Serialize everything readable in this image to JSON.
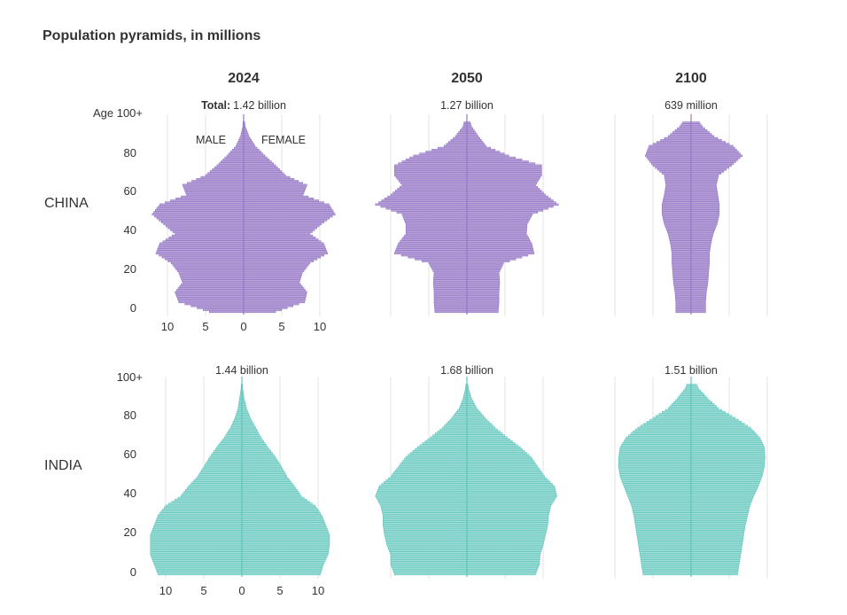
{
  "chart_data": {
    "type": "bar",
    "title": "Population pyramids, in millions",
    "age_step": 5,
    "ages": [
      0,
      5,
      10,
      15,
      20,
      25,
      30,
      35,
      40,
      45,
      50,
      55,
      60,
      65,
      70,
      75,
      80,
      85,
      90,
      95,
      100
    ],
    "yticks": [
      "0",
      "20",
      "40",
      "60",
      "80"
    ],
    "ytick_top_china": "Age 100+",
    "ytick_top_india": "100+",
    "xticks": [
      "10",
      "5",
      "0",
      "5",
      "10"
    ],
    "xlim": [
      -10,
      10
    ],
    "male_label": "MALE",
    "female_label": "FEMALE",
    "total_prefix": "Total:",
    "colors": {
      "china_fill": "#bba6dc",
      "china_stroke": "#9478c4",
      "india_fill": "#a6e0da",
      "india_stroke": "#5ec5bb",
      "grid": "#e3e3e3"
    },
    "rows": [
      {
        "country": "CHINA",
        "panels": [
          {
            "year": "2024",
            "total": "1.42 billion",
            "male": [
              4.5,
              8.5,
              9,
              8,
              8.5,
              9.5,
              11.5,
              11,
              9,
              10.5,
              12,
              11,
              7.5,
              8,
              5,
              3.5,
              2.2,
              1,
              0.4,
              0.1,
              0.05
            ],
            "female": [
              4.2,
              8,
              8.3,
              7.3,
              7.7,
              8.7,
              11,
              10.5,
              8.7,
              10.2,
              12,
              11.2,
              7.8,
              8.3,
              5.5,
              4.2,
              2.8,
              1.5,
              0.7,
              0.2,
              0.05
            ]
          },
          {
            "year": "2050",
            "total": "1.27 billion",
            "male": [
              4.2,
              4.3,
              4.3,
              4.4,
              4.3,
              5,
              9.5,
              9,
              8,
              8,
              8.5,
              12,
              10,
              8.5,
              9.5,
              9.5,
              7,
              3,
              1.5,
              0.5,
              0.2
            ],
            "female": [
              4.1,
              4.2,
              4.2,
              4.3,
              4.2,
              4.8,
              8.8,
              8.5,
              7.8,
              7.9,
              8.6,
              12,
              10.3,
              9,
              9.8,
              9.8,
              5.5,
              2.5,
              1.5,
              0.6,
              0.2
            ]
          },
          {
            "year": "2100",
            "total": "639 million",
            "male": [
              2,
              2,
              2.1,
              2.3,
              2.4,
              2.5,
              2.5,
              2.7,
              3,
              3.5,
              3.8,
              3.8,
              3.5,
              3.3,
              3.5,
              5,
              6,
              5.5,
              3,
              1.5,
              0.5
            ],
            "female": [
              1.9,
              1.9,
              2,
              2.2,
              2.3,
              2.4,
              2.4,
              2.6,
              2.9,
              3.4,
              3.7,
              3.7,
              3.5,
              3.3,
              3.6,
              5.3,
              6.7,
              5.5,
              3,
              1.5,
              0.5
            ]
          }
        ]
      },
      {
        "country": "INDIA",
        "panels": [
          {
            "year": "2024",
            "total": "1.44 billion",
            "male": [
              11,
              11.5,
              12,
              12,
              12,
              11.5,
              11,
              10,
              8,
              7,
              5.8,
              5,
              4.2,
              3.3,
              2.3,
              1.5,
              0.9,
              0.5,
              0.3,
              0.1,
              0.05
            ],
            "female": [
              10.3,
              10.7,
              11.3,
              11.5,
              11.5,
              11,
              10.5,
              9.6,
              7.8,
              6.9,
              5.9,
              5.2,
              4.4,
              3.4,
              2.5,
              1.8,
              1.1,
              0.6,
              0.3,
              0.1,
              0.05
            ]
          },
          {
            "year": "2050",
            "total": "1.68 billion",
            "male": [
              9.5,
              10,
              10,
              10.5,
              10.8,
              11,
              11,
              11.3,
              12,
              11.5,
              10,
              9,
              8,
              6.5,
              4.8,
              3.2,
              2,
              1,
              0.5,
              0.2,
              0.05
            ],
            "female": [
              9,
              9.5,
              9.6,
              10,
              10.3,
              10.6,
              10.7,
              11,
              11.8,
              11.5,
              10.2,
              9.3,
              8.4,
              7,
              5.3,
              3.7,
              2.4,
              1.3,
              0.6,
              0.2,
              0.05
            ]
          },
          {
            "year": "2100",
            "total": "1.51 billion",
            "male": [
              6.3,
              6.5,
              6.7,
              6.9,
              7.1,
              7.3,
              7.5,
              7.8,
              8.3,
              8.8,
              9.3,
              9.5,
              9.5,
              9.3,
              8.5,
              7,
              5,
              3,
              1.8,
              0.8,
              0.2
            ],
            "female": [
              6.1,
              6.3,
              6.5,
              6.7,
              6.9,
              7.1,
              7.4,
              7.7,
              8.2,
              8.8,
              9.3,
              9.6,
              9.7,
              9.6,
              9,
              7.8,
              5.8,
              3.6,
              2.2,
              1,
              0.3
            ]
          }
        ]
      }
    ]
  }
}
